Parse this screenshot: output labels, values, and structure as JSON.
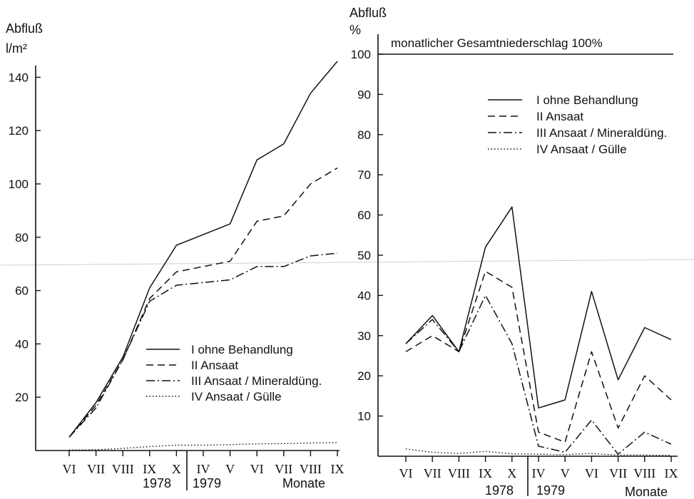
{
  "chart_data": [
    {
      "type": "line",
      "ylabel": "Abfluß",
      "yunit": "l/m²",
      "ylim": [
        0,
        145
      ],
      "yticks": [
        20,
        40,
        60,
        80,
        100,
        120,
        140
      ],
      "categories": [
        "VI",
        "VII",
        "VIII",
        "IX",
        "X",
        "IV",
        "V",
        "VI",
        "VII",
        "VIII",
        "IX"
      ],
      "year_labels": [
        "1978",
        "1979"
      ],
      "xlabel": "Monate",
      "grid": false,
      "legend_position": "lower-right",
      "series": [
        {
          "name": "I ohne Behandlung",
          "style": "solid",
          "values": [
            5,
            18,
            35,
            61,
            77,
            81,
            85,
            109,
            115,
            134,
            146
          ]
        },
        {
          "name": "II Ansaat",
          "style": "dashed",
          "values": [
            5,
            17,
            34,
            57,
            67,
            69,
            71,
            86,
            88,
            100,
            106
          ]
        },
        {
          "name": "III Ansaat / Mineraldüng.",
          "style": "dashdot",
          "values": [
            5,
            16,
            34,
            56,
            62,
            63,
            64,
            69,
            69,
            73,
            74
          ]
        },
        {
          "name": "IV Ansaat / Gülle",
          "style": "dotted",
          "values": [
            0.2,
            0.3,
            0.8,
            1.5,
            2,
            2,
            2.2,
            2.5,
            2.6,
            2.8,
            3
          ]
        }
      ]
    },
    {
      "type": "line",
      "ylabel": "Abfluß",
      "yunit": "%",
      "ylim": [
        0,
        100
      ],
      "yticks": [
        10,
        20,
        30,
        40,
        50,
        60,
        70,
        80,
        90,
        100
      ],
      "reference_line": {
        "value": 100,
        "label": "monatlicher Gesamtniederschlag 100%"
      },
      "categories": [
        "VI",
        "VII",
        "VIII",
        "IX",
        "X",
        "IV",
        "V",
        "VI",
        "VII",
        "VIII",
        "IX"
      ],
      "year_labels": [
        "1978",
        "1979"
      ],
      "xlabel": "Monate",
      "grid": false,
      "legend_position": "upper-right",
      "series": [
        {
          "name": "I ohne Behandlung",
          "style": "solid",
          "values": [
            28,
            35,
            26,
            52,
            62,
            12,
            14,
            41,
            19,
            32,
            29
          ]
        },
        {
          "name": "II Ansaat",
          "style": "dashed",
          "values": [
            26,
            30,
            26,
            46,
            42,
            6,
            3.5,
            26,
            7,
            20,
            14
          ]
        },
        {
          "name": "III Ansaat / Mineraldüng.",
          "style": "dashdot",
          "values": [
            28,
            34,
            26,
            40,
            28,
            2.5,
            1,
            9,
            0.5,
            6,
            3
          ]
        },
        {
          "name": "IV Ansaat / Gülle",
          "style": "dotted",
          "values": [
            1.8,
            1,
            0.7,
            1.2,
            0.6,
            0.5,
            0.4,
            0.7,
            0.3,
            0.3,
            0.2
          ]
        }
      ]
    }
  ]
}
